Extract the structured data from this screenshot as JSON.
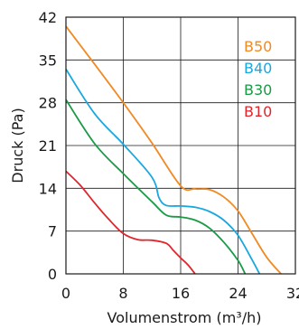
{
  "chart_data": {
    "type": "line",
    "xlabel": "Volumenstrom (m³/h)",
    "ylabel": "Druck (Pa)",
    "xlim": [
      0,
      32
    ],
    "ylim": [
      0,
      42
    ],
    "xticks": [
      0,
      8,
      16,
      24,
      32
    ],
    "yticks": [
      0,
      7,
      14,
      21,
      28,
      35,
      42
    ],
    "grid": true,
    "legend_position": "top-right",
    "series": [
      {
        "name": "B50",
        "color": "#f08a24",
        "points": [
          [
            0,
            40.5
          ],
          [
            4,
            34.3
          ],
          [
            8,
            28
          ],
          [
            12,
            21.4
          ],
          [
            16,
            14.4
          ],
          [
            18,
            13.9
          ],
          [
            20,
            13.8
          ],
          [
            22,
            12.6
          ],
          [
            24,
            10.3
          ],
          [
            26,
            6.5
          ],
          [
            28,
            2.7
          ],
          [
            30,
            0
          ]
        ]
      },
      {
        "name": "B40",
        "color": "#18a8e0",
        "points": [
          [
            0,
            33.5
          ],
          [
            4,
            26.2
          ],
          [
            8,
            21.2
          ],
          [
            12,
            15.8
          ],
          [
            13,
            12.4
          ],
          [
            14,
            11.2
          ],
          [
            16,
            11.1
          ],
          [
            18,
            10.9
          ],
          [
            20,
            10.2
          ],
          [
            22,
            8.8
          ],
          [
            24,
            6.3
          ],
          [
            26,
            2.2
          ],
          [
            27,
            0
          ]
        ]
      },
      {
        "name": "B30",
        "color": "#1a9a46",
        "points": [
          [
            0,
            28.5
          ],
          [
            4,
            21.3
          ],
          [
            8,
            16.4
          ],
          [
            12,
            11.8
          ],
          [
            14,
            9.6
          ],
          [
            16,
            9.3
          ],
          [
            18,
            8.8
          ],
          [
            20,
            7.5
          ],
          [
            22,
            5.2
          ],
          [
            24,
            2.2
          ],
          [
            25,
            0
          ]
        ]
      },
      {
        "name": "B10",
        "color": "#e0262c",
        "points": [
          [
            0,
            16.8
          ],
          [
            2,
            14.5
          ],
          [
            4,
            11.6
          ],
          [
            6,
            8.9
          ],
          [
            8,
            6.6
          ],
          [
            10,
            5.6
          ],
          [
            12,
            5.5
          ],
          [
            14,
            5
          ],
          [
            15,
            3.8
          ],
          [
            16,
            2.6
          ],
          [
            17,
            1.5
          ],
          [
            18,
            0
          ]
        ]
      }
    ]
  }
}
